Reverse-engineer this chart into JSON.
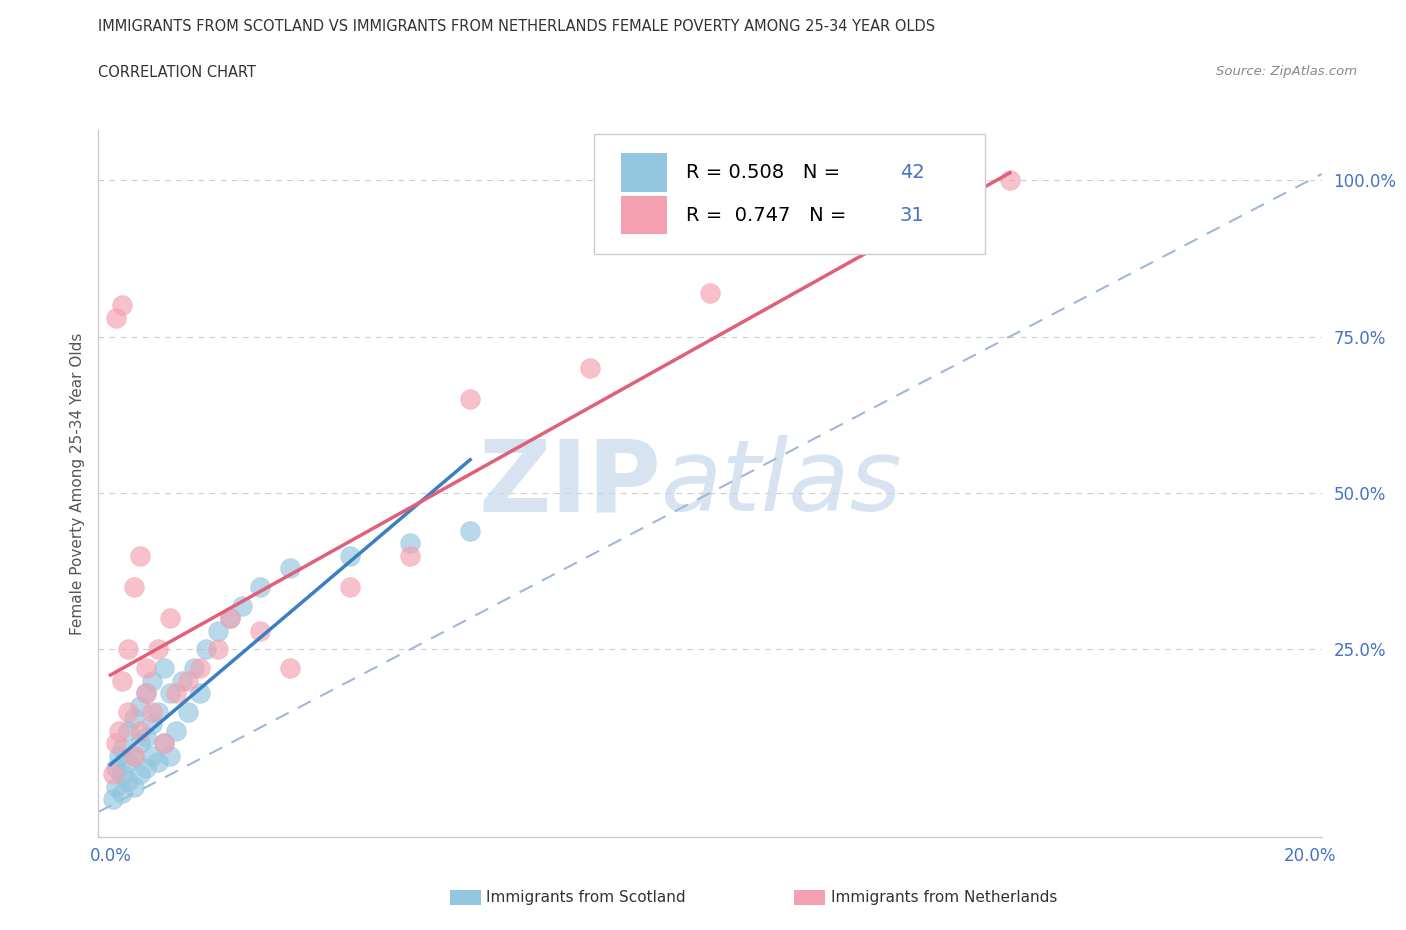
{
  "title_line1": "IMMIGRANTS FROM SCOTLAND VS IMMIGRANTS FROM NETHERLANDS FEMALE POVERTY AMONG 25-34 YEAR OLDS",
  "title_line2": "CORRELATION CHART",
  "source_text": "Source: ZipAtlas.com",
  "ylabel": "Female Poverty Among 25-34 Year Olds",
  "legend_label_1": "Immigrants from Scotland",
  "legend_label_2": "Immigrants from Netherlands",
  "R1": "0.508",
  "N1": "42",
  "R2": "0.747",
  "N2": "31",
  "color_scotland": "#92c5de",
  "color_netherlands": "#f4a0b0",
  "color_scotland_line": "#3a7fc1",
  "color_netherlands_line": "#e0607a",
  "color_diagonal": "#a0b8d8",
  "xlim": [
    -0.002,
    0.202
  ],
  "ylim": [
    -0.05,
    1.08
  ],
  "scotland_x": [
    0.0005,
    0.001,
    0.001,
    0.0015,
    0.002,
    0.002,
    0.002,
    0.003,
    0.003,
    0.003,
    0.004,
    0.004,
    0.004,
    0.005,
    0.005,
    0.005,
    0.006,
    0.006,
    0.006,
    0.007,
    0.007,
    0.007,
    0.008,
    0.008,
    0.009,
    0.009,
    0.01,
    0.01,
    0.011,
    0.012,
    0.013,
    0.014,
    0.015,
    0.016,
    0.018,
    0.02,
    0.022,
    0.025,
    0.03,
    0.04,
    0.05,
    0.06
  ],
  "scotland_y": [
    0.01,
    0.03,
    0.06,
    0.08,
    0.02,
    0.05,
    0.09,
    0.04,
    0.07,
    0.12,
    0.03,
    0.08,
    0.14,
    0.05,
    0.1,
    0.16,
    0.06,
    0.11,
    0.18,
    0.08,
    0.13,
    0.2,
    0.07,
    0.15,
    0.1,
    0.22,
    0.08,
    0.18,
    0.12,
    0.2,
    0.15,
    0.22,
    0.18,
    0.25,
    0.28,
    0.3,
    0.32,
    0.35,
    0.38,
    0.4,
    0.42,
    0.44
  ],
  "netherlands_x": [
    0.0005,
    0.001,
    0.001,
    0.0015,
    0.002,
    0.002,
    0.003,
    0.003,
    0.004,
    0.004,
    0.005,
    0.005,
    0.006,
    0.006,
    0.007,
    0.008,
    0.009,
    0.01,
    0.011,
    0.013,
    0.015,
    0.018,
    0.02,
    0.025,
    0.03,
    0.04,
    0.05,
    0.06,
    0.08,
    0.1,
    0.15
  ],
  "netherlands_y": [
    0.05,
    0.1,
    0.78,
    0.12,
    0.2,
    0.8,
    0.15,
    0.25,
    0.08,
    0.35,
    0.12,
    0.4,
    0.18,
    0.22,
    0.15,
    0.25,
    0.1,
    0.3,
    0.18,
    0.2,
    0.22,
    0.25,
    0.3,
    0.28,
    0.22,
    0.35,
    0.4,
    0.65,
    0.7,
    0.82,
    1.0
  ],
  "watermark_zip": "ZIP",
  "watermark_atlas": "atlas"
}
